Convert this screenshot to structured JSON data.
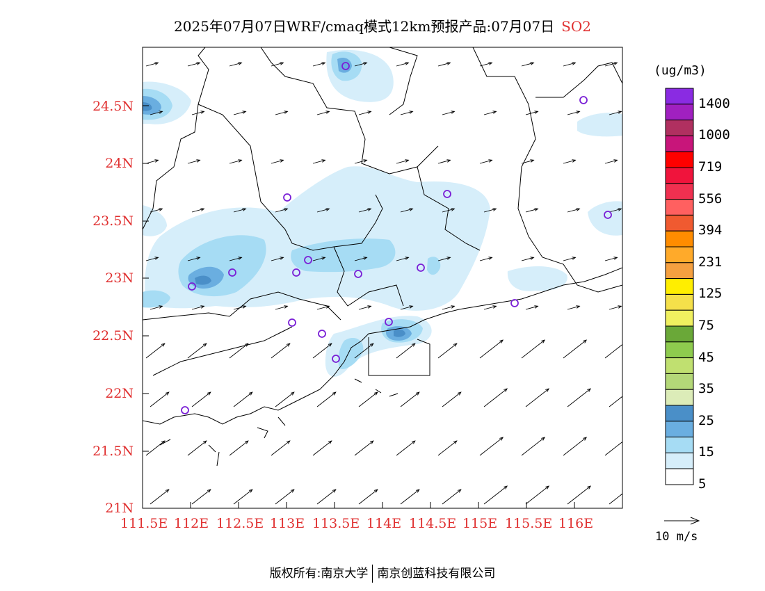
{
  "title": {
    "main": "2025年07月07日WRF/cmaq模式12km预报产品:07月07日",
    "pollutant": "SO2"
  },
  "map": {
    "lat_labels": [
      "24.5N",
      "24N",
      "23.5N",
      "23N",
      "22.5N",
      "22N",
      "21.5N",
      "21N"
    ],
    "lon_labels": [
      "111.5E",
      "112E",
      "112.5E",
      "113E",
      "113.5E",
      "114E",
      "114.5E",
      "115E",
      "115.5E",
      "116E"
    ]
  },
  "colorbar": {
    "unit": "(ug/m3)",
    "labels": [
      "1400",
      "1000",
      "719",
      "556",
      "394",
      "231",
      "125",
      "75",
      "45",
      "35",
      "25",
      "15",
      "5"
    ],
    "colors": [
      "#8a2be2",
      "#a020c0",
      "#b03060",
      "#c8157a",
      "#ff0000",
      "#f0143c",
      "#f03050",
      "#ff6060",
      "#f05a30",
      "#ff8c00",
      "#ffaa2a",
      "#f5a040",
      "#ffee00",
      "#f5e04a",
      "#f0f060",
      "#6aa838",
      "#8ecb4e",
      "#c0e070",
      "#b4d878",
      "#dcecb8",
      "#4a8fc8",
      "#6aaee0",
      "#a6dcf4",
      "#d6eefa",
      "#ffffff"
    ]
  },
  "wind_reference": {
    "label": "10 m/s"
  },
  "footer": {
    "left": "版权所有:南京大学",
    "right": "南京创蓝科技有限公司"
  }
}
